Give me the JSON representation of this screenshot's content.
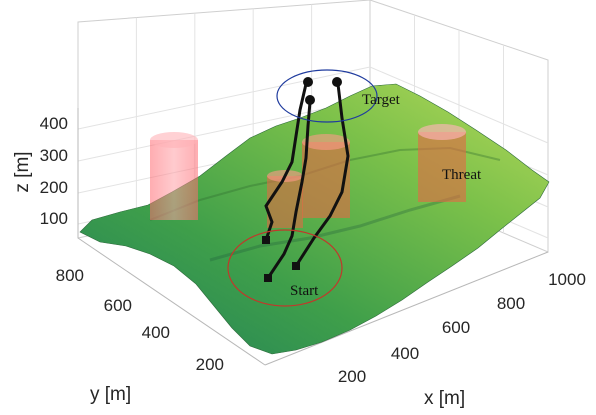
{
  "chart_data": {
    "type": "surface-3d",
    "xlabel": "x [m]",
    "ylabel": "y [m]",
    "zlabel": "z [m]",
    "x_ticks": [
      200,
      400,
      600,
      800,
      1000
    ],
    "y_ticks": [
      200,
      400,
      600,
      800
    ],
    "z_ticks": [
      100,
      200,
      300,
      400
    ],
    "xlim": [
      0,
      1050
    ],
    "ylim": [
      100,
      900
    ],
    "zlim": [
      50,
      420
    ],
    "terrain_colormap": [
      "#1f7f5a",
      "#3f9f4a",
      "#7cc14a",
      "#c9de5c"
    ],
    "threats": [
      {
        "x": 120,
        "y": 850,
        "z_top": 330,
        "radius": 60
      },
      {
        "x": 430,
        "y": 560,
        "z_top": 260,
        "radius": 50
      },
      {
        "x": 640,
        "y": 520,
        "z_top": 300,
        "radius": 60
      },
      {
        "x": 960,
        "y": 640,
        "z_top": 340,
        "radius": 60
      }
    ],
    "threat_color": "#ff4d57",
    "paths": [
      {
        "start": [
          300,
          450,
          150
        ],
        "target": [
          760,
          410,
          350
        ]
      },
      {
        "start": [
          470,
          350,
          150
        ],
        "target": [
          760,
          520,
          340
        ]
      },
      {
        "start": [
          340,
          620,
          160
        ],
        "target": [
          790,
          600,
          355
        ]
      }
    ],
    "annotations": {
      "start": "Start",
      "target": "Target",
      "threat": "Threat"
    },
    "start_ellipse_color": "#c0392b",
    "target_ellipse_color": "#1f3b9e"
  }
}
